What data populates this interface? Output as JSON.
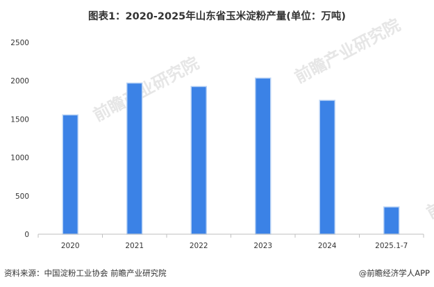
{
  "title": "图表1：2020-2025年山东省玉米淀粉产量(单位：万吨)",
  "footer": {
    "source": "资料来源：中国淀粉工业协会 前瞻产业研究院",
    "brand": "@前瞻经济学人APP"
  },
  "watermark": "前瞻产业研究院",
  "colors": {
    "bar": "#3b82e6",
    "bar_edge": "#b9d3f5",
    "axis": "#bfbfbf"
  },
  "chart_data": {
    "type": "bar",
    "title": "图表1：2020-2025年山东省玉米淀粉产量(单位：万吨)",
    "categories": [
      "2020",
      "2021",
      "2022",
      "2023",
      "2024",
      "2025.1-7"
    ],
    "values": [
      1555,
      1970,
      1925,
      2035,
      1745,
      355
    ],
    "ylim": [
      0,
      2500
    ],
    "yticks": [
      0,
      500,
      1000,
      1500,
      2000,
      2500
    ],
    "xlabel": "",
    "ylabel": "",
    "grid": false,
    "legend": "none"
  }
}
